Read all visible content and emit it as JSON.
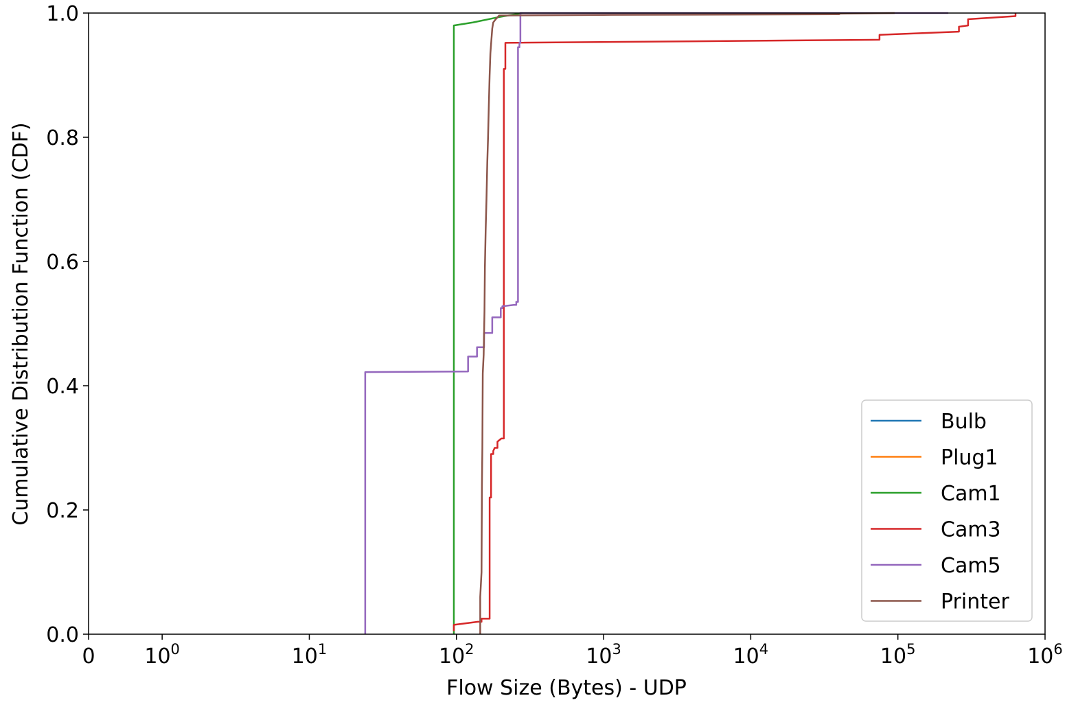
{
  "chart_data": {
    "type": "line",
    "xlabel": "Flow Size (Bytes) - UDP",
    "ylabel": "Cumulative Distribution Function (CDF)",
    "xscale": "symlog",
    "xlim": [
      0,
      1000000
    ],
    "ylim": [
      0,
      1.0
    ],
    "x_ticks": [
      {
        "value": 0,
        "base": "0",
        "exp": ""
      },
      {
        "value": 1,
        "base": "10",
        "exp": "0"
      },
      {
        "value": 10,
        "base": "10",
        "exp": "1"
      },
      {
        "value": 100,
        "base": "10",
        "exp": "2"
      },
      {
        "value": 1000,
        "base": "10",
        "exp": "3"
      },
      {
        "value": 10000,
        "base": "10",
        "exp": "4"
      },
      {
        "value": 100000,
        "base": "10",
        "exp": "5"
      },
      {
        "value": 1000000,
        "base": "10",
        "exp": "6"
      }
    ],
    "y_ticks": [
      {
        "value": 0.0,
        "label": "0.0"
      },
      {
        "value": 0.2,
        "label": "0.2"
      },
      {
        "value": 0.4,
        "label": "0.4"
      },
      {
        "value": 0.6,
        "label": "0.6"
      },
      {
        "value": 0.8,
        "label": "0.8"
      },
      {
        "value": 1.0,
        "label": "1.0"
      }
    ],
    "grid": false,
    "legend_position": "bottom-right",
    "series": [
      {
        "name": "Bulb",
        "color": "#1f77b4",
        "points": []
      },
      {
        "name": "Plug1",
        "color": "#ff7f0e",
        "points": []
      },
      {
        "name": "Cam1",
        "color": "#2ca02c",
        "points": [
          [
            96,
            0.0
          ],
          [
            96,
            0.98
          ],
          [
            130,
            0.985
          ],
          [
            190,
            0.993
          ],
          [
            280,
            1.0
          ]
        ]
      },
      {
        "name": "Cam3",
        "color": "#d62728",
        "points": [
          [
            96,
            0.005
          ],
          [
            96,
            0.015
          ],
          [
            140,
            0.02
          ],
          [
            148,
            0.02
          ],
          [
            148,
            0.025
          ],
          [
            168,
            0.025
          ],
          [
            168,
            0.22
          ],
          [
            172,
            0.22
          ],
          [
            172,
            0.29
          ],
          [
            178,
            0.29
          ],
          [
            178,
            0.295
          ],
          [
            182,
            0.3
          ],
          [
            190,
            0.3
          ],
          [
            190,
            0.31
          ],
          [
            202,
            0.315
          ],
          [
            210,
            0.315
          ],
          [
            210,
            0.91
          ],
          [
            215,
            0.91
          ],
          [
            215,
            0.952
          ],
          [
            75000,
            0.957
          ],
          [
            75000,
            0.965
          ],
          [
            260000,
            0.97
          ],
          [
            260000,
            0.978
          ],
          [
            300000,
            0.98
          ],
          [
            300000,
            0.99
          ],
          [
            630000,
            0.995
          ],
          [
            630000,
            1.0
          ]
        ]
      },
      {
        "name": "Cam5",
        "color": "#9467bd",
        "points": [
          [
            24,
            0.0
          ],
          [
            24,
            0.422
          ],
          [
            120,
            0.423
          ],
          [
            120,
            0.447
          ],
          [
            138,
            0.447
          ],
          [
            138,
            0.462
          ],
          [
            154,
            0.462
          ],
          [
            154,
            0.485
          ],
          [
            175,
            0.485
          ],
          [
            175,
            0.51
          ],
          [
            200,
            0.51
          ],
          [
            200,
            0.525
          ],
          [
            205,
            0.525
          ],
          [
            205,
            0.528
          ],
          [
            245,
            0.53
          ],
          [
            255,
            0.53
          ],
          [
            255,
            0.535
          ],
          [
            262,
            0.535
          ],
          [
            262,
            0.945
          ],
          [
            268,
            0.945
          ],
          [
            268,
            0.952
          ],
          [
            272,
            0.952
          ],
          [
            272,
            1.0
          ],
          [
            220000,
            1.0
          ]
        ]
      },
      {
        "name": "Printer",
        "color": "#8c564b",
        "points": [
          [
            145,
            0.0
          ],
          [
            145,
            0.06
          ],
          [
            148,
            0.1
          ],
          [
            149,
            0.24
          ],
          [
            150,
            0.3
          ],
          [
            151,
            0.42
          ],
          [
            153,
            0.45
          ],
          [
            155,
            0.52
          ],
          [
            156,
            0.59
          ],
          [
            158,
            0.65
          ],
          [
            160,
            0.7
          ],
          [
            162,
            0.76
          ],
          [
            164,
            0.8
          ],
          [
            166,
            0.85
          ],
          [
            168,
            0.9
          ],
          [
            170,
            0.935
          ],
          [
            172,
            0.95
          ],
          [
            175,
            0.975
          ],
          [
            178,
            0.985
          ],
          [
            185,
            0.99
          ],
          [
            195,
            0.996
          ],
          [
            1000,
            0.997
          ],
          [
            40000,
            0.998
          ],
          [
            40000,
            0.999
          ],
          [
            95000,
            1.0
          ]
        ]
      }
    ]
  }
}
